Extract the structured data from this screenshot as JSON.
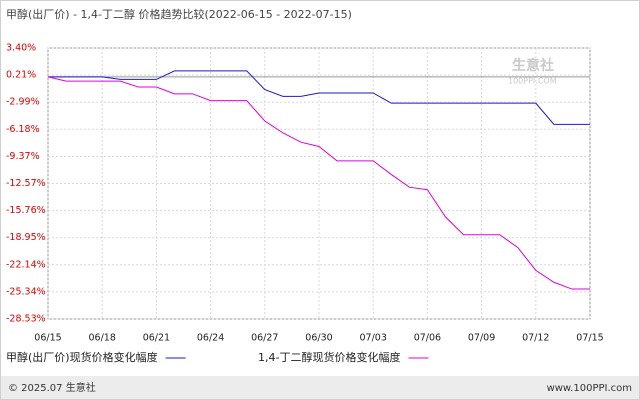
{
  "chart_data": {
    "type": "line",
    "title": "甲醇(出厂价) - 1,4-丁二醇 价格趋势比较(2022-06-15 - 2022-07-15)",
    "watermark": "生意社",
    "watermark_url": "100PPI.COM",
    "footer_left": "© 2025.07 生意社",
    "footer_right": "www.100PPI.com",
    "categories": [
      "06/15",
      null,
      null,
      "06/18",
      null,
      null,
      "06/21",
      null,
      null,
      "06/24",
      null,
      null,
      "06/27",
      null,
      null,
      "06/30",
      null,
      null,
      "07/03",
      null,
      null,
      "07/06",
      null,
      null,
      "07/09",
      null,
      null,
      "07/12",
      null,
      null,
      "07/15"
    ],
    "series": [
      {
        "name": "甲醇(出厂价)现货价格变化幅度",
        "color": "#1a1acc",
        "values": [
          0,
          0,
          0,
          0,
          -0.3,
          -0.3,
          -0.3,
          0.7,
          0.7,
          0.7,
          0.7,
          0.7,
          -1.5,
          -2.3,
          -2.3,
          -1.9,
          -1.9,
          -1.9,
          -1.9,
          -3.1,
          -3.1,
          -3.1,
          -3.1,
          -3.1,
          -3.1,
          -3.1,
          -3.1,
          -3.1,
          -5.6,
          -5.6,
          -5.6
        ]
      },
      {
        "name": "1,4-丁二醇现货价格变化幅度",
        "color": "#e000e0",
        "values": [
          0,
          -0.5,
          -0.5,
          -0.5,
          -0.5,
          -1.2,
          -1.2,
          -2.0,
          -2.0,
          -2.8,
          -2.8,
          -2.8,
          -5.2,
          -6.6,
          -7.7,
          -8.2,
          -9.9,
          -9.9,
          -9.9,
          -11.5,
          -13.0,
          -13.3,
          -16.5,
          -18.6,
          -18.6,
          -18.6,
          -20.1,
          -22.8,
          -24.2,
          -25.0,
          -25.0
        ]
      }
    ],
    "ylim": [
      -28.53,
      3.4
    ],
    "yticks": [
      {
        "value": 3.4,
        "label": "3.40%"
      },
      {
        "value": 0.21,
        "label": "0.21%"
      },
      {
        "value": -2.99,
        "label": "-2.99%"
      },
      {
        "value": -6.18,
        "label": "-6.18%"
      },
      {
        "value": -9.37,
        "label": "-9.37%"
      },
      {
        "value": -12.57,
        "label": "-12.57%"
      },
      {
        "value": -15.76,
        "label": "-15.76%"
      },
      {
        "value": -18.95,
        "label": "-18.95%"
      },
      {
        "value": -22.14,
        "label": "-22.14%"
      },
      {
        "value": -25.34,
        "label": "-25.34%"
      },
      {
        "value": -28.53,
        "label": "-28.53%"
      }
    ],
    "grid": true
  }
}
